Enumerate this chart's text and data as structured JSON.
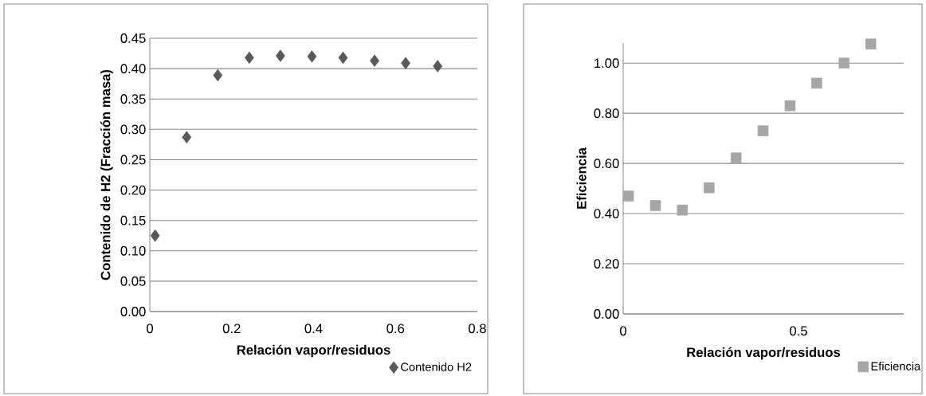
{
  "chart_data": [
    {
      "type": "scatter",
      "xlabel": "Relación vapor/residuos",
      "ylabel": "Contenido de H2 (Fracción masa)",
      "series": [
        {
          "name": "Contenido H2",
          "color": "#595959",
          "marker": "diamond",
          "x": [
            0.013,
            0.09,
            0.166,
            0.243,
            0.319,
            0.396,
            0.472,
            0.549,
            0.625,
            0.703
          ],
          "values": [
            0.125,
            0.287,
            0.389,
            0.418,
            0.421,
            0.42,
            0.418,
            0.413,
            0.409,
            0.404
          ]
        }
      ],
      "xlim": [
        0,
        0.8
      ],
      "xticks": [
        0,
        0.2,
        0.4,
        0.6,
        0.8
      ],
      "ylim": [
        0,
        0.45
      ],
      "yticks": [
        {
          "value": 0,
          "label": "0.00"
        },
        {
          "value": 0.05,
          "label": "0.05"
        },
        {
          "value": 0.1,
          "label": "0.10"
        },
        {
          "value": 0.15,
          "label": "0.15"
        },
        {
          "value": 0.2,
          "label": "0.20"
        },
        {
          "value": 0.25,
          "label": "0.25"
        },
        {
          "value": 0.3,
          "label": "0.30"
        },
        {
          "value": 0.35,
          "label": "0.35"
        },
        {
          "value": 0.4,
          "label": "0.40"
        },
        {
          "value": 0.45,
          "label": "0.45"
        }
      ],
      "grid": "y",
      "legend": "bottom right"
    },
    {
      "type": "scatter",
      "xlabel": "Relación vapor/residuos",
      "ylabel": "Eficiencia",
      "series": [
        {
          "name": "Eficiencia",
          "color": "#a6a6a6",
          "marker": "square",
          "x": [
            0.015,
            0.092,
            0.169,
            0.245,
            0.322,
            0.399,
            0.476,
            0.552,
            0.63,
            0.706
          ],
          "values": [
            0.47,
            0.432,
            0.414,
            0.503,
            0.622,
            0.73,
            0.83,
            0.92,
            1.0,
            1.076
          ]
        }
      ],
      "xlim": [
        0,
        0.8
      ],
      "xticks": [
        0,
        0.5
      ],
      "ylim": [
        0,
        1.08
      ],
      "yticks": [
        {
          "value": 0,
          "label": "0.00"
        },
        {
          "value": 0.2,
          "label": "0.20"
        },
        {
          "value": 0.4,
          "label": "0.40"
        },
        {
          "value": 0.6,
          "label": "0.60"
        },
        {
          "value": 0.8,
          "label": "0.80"
        },
        {
          "value": 1.0,
          "label": "1.00"
        }
      ],
      "grid": "y",
      "legend": "bottom right"
    }
  ]
}
